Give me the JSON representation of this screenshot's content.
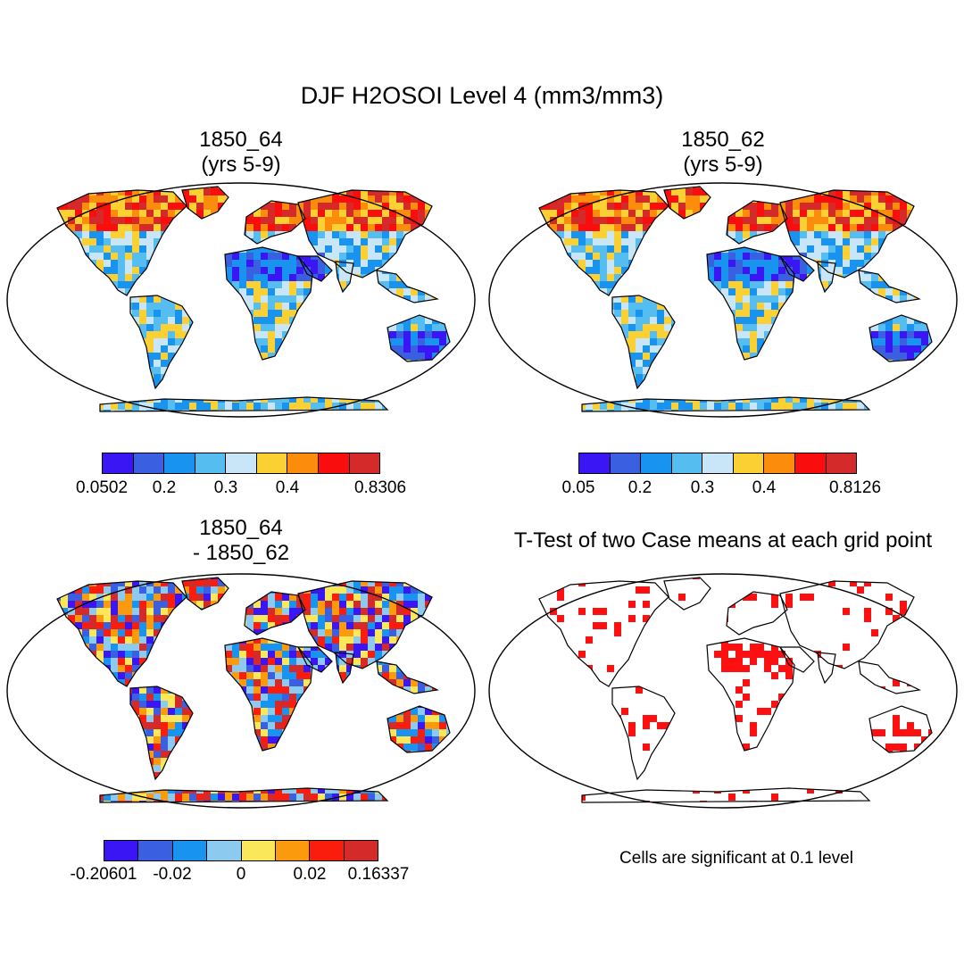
{
  "figure": {
    "title": "DJF H2OSOI Level 4 (mm3/mm3)"
  },
  "panels": {
    "case1": {
      "title_line1": "1850_64",
      "title_line2": "(yrs 5-9)"
    },
    "case2": {
      "title_line1": "1850_62",
      "title_line2": "(yrs 5-9)"
    },
    "diff": {
      "title_line1": "1850_64",
      "title_line2": "- 1850_62"
    },
    "ttest": {
      "title": "T-Test of two Case means at each grid point",
      "note": "Cells are significant at 0.1 level"
    }
  },
  "colorbars": {
    "case1": {
      "colors": [
        "#3a16f5",
        "#3a5fe0",
        "#1894f0",
        "#56bdf0",
        "#c8e6f8",
        "#fbd033",
        "#fb8c0c",
        "#fa0d0d",
        "#d42a2a"
      ],
      "labels": [
        "0.0502",
        "0.2",
        "0.3",
        "0.4",
        "0.8306"
      ]
    },
    "case2": {
      "colors": [
        "#3a16f5",
        "#3a5fe0",
        "#1894f0",
        "#56bdf0",
        "#c8e6f8",
        "#fbd033",
        "#fb8c0c",
        "#fa0d0d",
        "#d42a2a"
      ],
      "labels": [
        "0.05",
        "0.2",
        "0.3",
        "0.4",
        "0.8126"
      ]
    },
    "diff": {
      "colors": [
        "#3a16f5",
        "#3a5fe0",
        "#1894f0",
        "#8ccaf0",
        "#fbe85a",
        "#fb9a0c",
        "#fa1d0d",
        "#d42a2a"
      ],
      "labels": [
        "-0.20601",
        "-0.02",
        "0",
        "0.02",
        "0.16337"
      ]
    }
  },
  "colors": {
    "land_outline": "#000000",
    "significance": "#ff1010",
    "ocean": "#ffffff"
  }
}
